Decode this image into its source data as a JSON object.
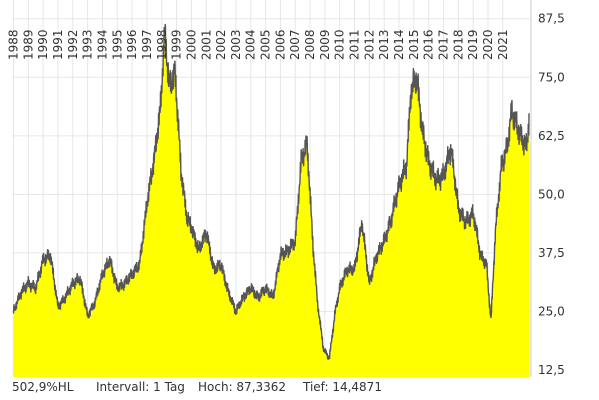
{
  "chart_data": {
    "type": "area",
    "x_start": 1987.9,
    "x_end": 2022.9,
    "xlim": [
      1987.9,
      2022.9
    ],
    "ylim": [
      11.0,
      91.5
    ],
    "x_tick_labels": [
      "1988",
      "1989",
      "1990",
      "1991",
      "1992",
      "1993",
      "1994",
      "1995",
      "1996",
      "1997",
      "1998",
      "1999",
      "2000",
      "2001",
      "2002",
      "2003",
      "2004",
      "2005",
      "2006",
      "2007",
      "2008",
      "2009",
      "2010",
      "2011",
      "2012",
      "2013",
      "2014",
      "2015",
      "2016",
      "2017",
      "2018",
      "2019",
      "2020",
      "2021"
    ],
    "y_ticks": [
      12.5,
      25.0,
      37.5,
      50.0,
      62.5,
      75.0,
      87.5
    ],
    "y_tick_labels": [
      "12,5",
      "25,0",
      "37,5",
      "50,0",
      "62,5",
      "75,0",
      "87,5"
    ],
    "grid": true,
    "fill_color": "#ffff00",
    "line_color": "#555555",
    "series": [
      {
        "x": [
          1988.0,
          1988.5,
          1989.0,
          1989.5,
          1990.0,
          1990.5,
          1991.0,
          1991.5,
          1992.0,
          1992.5,
          1993.0,
          1993.5,
          1994.0,
          1994.5,
          1995.0,
          1995.5,
          1996.0,
          1996.5,
          1997.0,
          1997.5,
          1997.9,
          1998.2,
          1998.5,
          1998.9,
          1999.3,
          1999.7,
          2000.0,
          2000.5,
          2001.0,
          2001.5,
          2002.0,
          2002.5,
          2003.0,
          2003.5,
          2004.0,
          2004.5,
          2005.0,
          2005.5,
          2006.0,
          2006.5,
          2007.0,
          2007.4,
          2007.8,
          2008.2,
          2008.5,
          2008.9,
          2009.3,
          2009.7,
          2010.0,
          2010.5,
          2011.0,
          2011.5,
          2012.0,
          2012.5,
          2013.0,
          2013.5,
          2014.0,
          2014.5,
          2014.8,
          2015.2,
          2015.6,
          2016.0,
          2016.5,
          2017.0,
          2017.5,
          2018.0,
          2018.5,
          2019.0,
          2019.5,
          2019.9,
          2020.2,
          2020.5,
          2020.9,
          2021.3,
          2021.6,
          2022.0,
          2022.3,
          2022.6,
          2022.8
        ],
        "values": [
          25,
          29,
          31,
          30,
          36,
          37,
          26,
          28,
          31,
          32,
          24,
          27,
          33,
          36,
          30,
          31,
          33,
          35,
          48,
          58,
          68,
          85,
          73,
          76,
          55,
          45,
          43,
          38,
          42,
          34,
          35,
          29,
          25,
          28,
          30,
          28,
          30,
          28,
          37,
          38,
          40,
          57,
          61,
          39,
          27,
          17,
          15,
          25,
          30,
          34,
          34,
          44,
          31,
          37,
          40,
          45,
          52,
          56,
          72,
          75,
          63,
          57,
          53,
          54,
          60,
          47,
          44,
          46,
          37,
          35,
          23,
          42,
          56,
          60,
          68,
          64,
          62,
          60,
          67
        ]
      }
    ]
  },
  "footer": {
    "scale": "502,9%HL",
    "interval": "Intervall: 1 Tag",
    "high": "Hoch: 87,3362",
    "low": "Tief: 14,4871"
  }
}
